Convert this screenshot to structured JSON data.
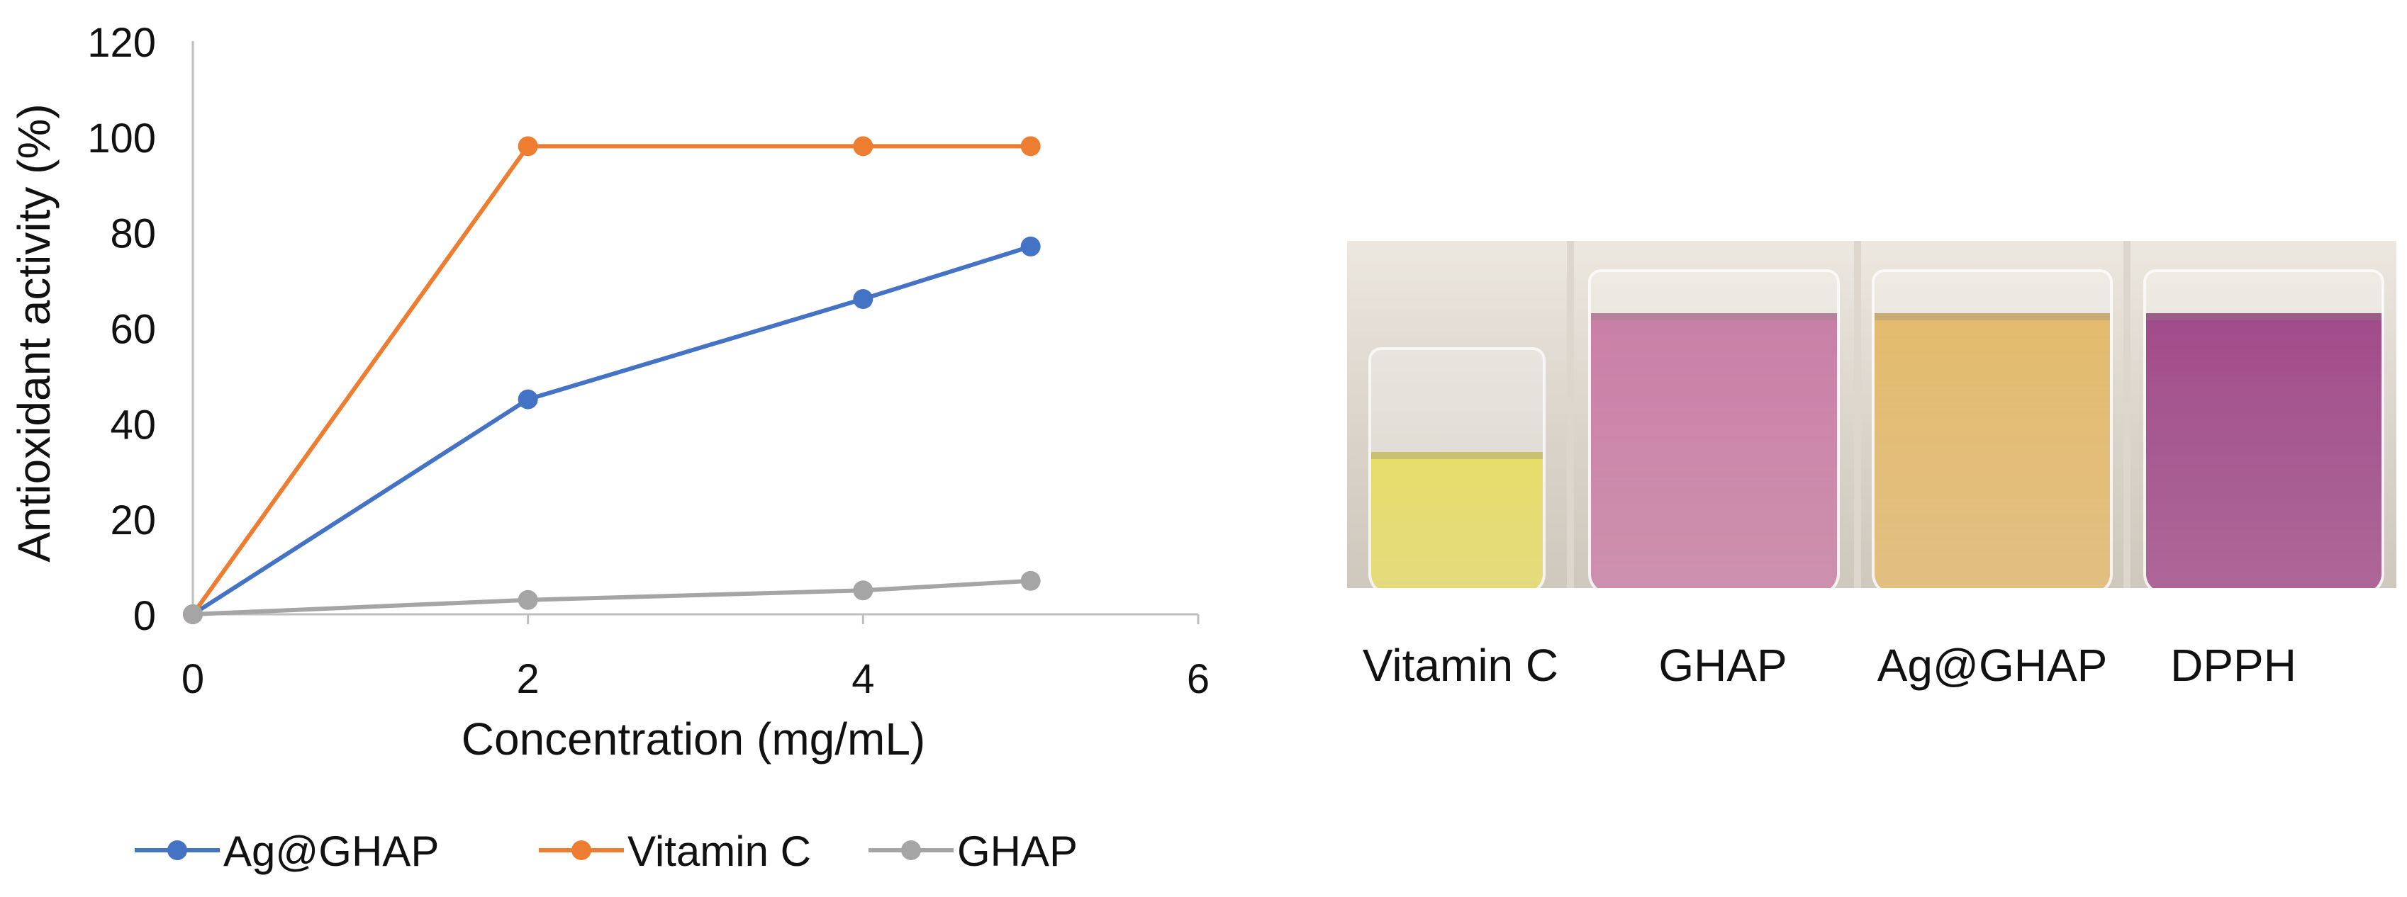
{
  "chart_data": {
    "type": "line",
    "title": "",
    "xlabel": "Concentration (mg/mL)",
    "ylabel": "Antioxidant activity (%)",
    "x": [
      0,
      2,
      4,
      5
    ],
    "xlim": [
      0,
      6
    ],
    "ylim": [
      0,
      120
    ],
    "xticks": [
      0,
      2,
      4,
      6
    ],
    "yticks": [
      0,
      20,
      40,
      60,
      80,
      100,
      120
    ],
    "grid": false,
    "legend_position": "bottom",
    "series": [
      {
        "name": "Ag@GHAP",
        "color": "#4472C4",
        "values": [
          0,
          45,
          66,
          77
        ]
      },
      {
        "name": "Vitamin C",
        "color": "#ED7D31",
        "values": [
          0,
          98,
          98,
          98
        ]
      },
      {
        "name": "GHAP",
        "color": "#A5A5A5",
        "values": [
          0,
          3,
          5,
          7
        ]
      }
    ]
  },
  "photo": {
    "vials": [
      {
        "label": "Vitamin C",
        "liquid_color": "#e6dc6a",
        "fill_fraction": 0.55
      },
      {
        "label": "GHAP",
        "liquid_color": "#c97fa6",
        "fill_fraction": 0.85
      },
      {
        "label": "Ag@GHAP",
        "liquid_color": "#e3ba6e",
        "fill_fraction": 0.85
      },
      {
        "label": "DPPH",
        "liquid_color": "#a14c8a",
        "fill_fraction": 0.85
      }
    ]
  }
}
